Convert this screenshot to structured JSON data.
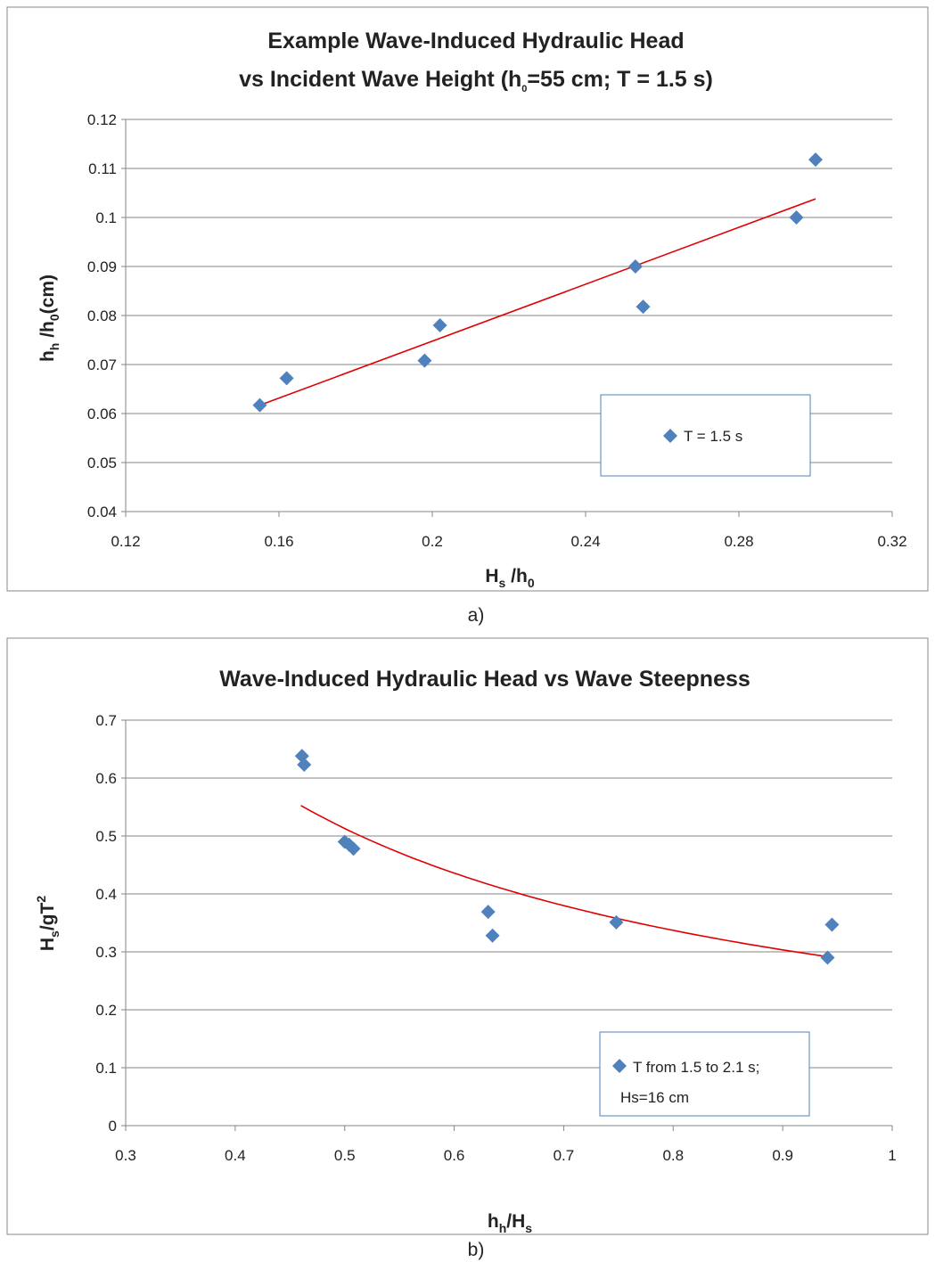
{
  "chart_data": [
    {
      "type": "scatter",
      "panel_label": "a)",
      "title": {
        "line1": "Example Wave-Induced Hydraulic Head",
        "line2_pre": "vs Incident Wave Height (h",
        "line2_sub": "0",
        "line2_post": "=55 cm; T = 1.5 s)"
      },
      "xlabel": {
        "main": "H",
        "sub1": "s",
        "mid": " /h",
        "sub2": "0"
      },
      "ylabel": {
        "main": "h",
        "sub1": "h",
        "mid": " /h",
        "sub2": "0",
        "post": "(cm)"
      },
      "xlim": [
        0.12,
        0.32
      ],
      "ylim": [
        0.04,
        0.12
      ],
      "x_ticks": [
        "0.12",
        "0.16",
        "0.2",
        "0.24",
        "0.28",
        "0.32"
      ],
      "y_ticks": [
        "0.04",
        "0.05",
        "0.06",
        "0.07",
        "0.08",
        "0.09",
        "0.1",
        "0.11",
        "0.12"
      ],
      "grid": "horizontal",
      "legend_position": "bottom-right",
      "series": [
        {
          "name": "T = 1.5 s",
          "color": "#4F81BD",
          "marker": "diamond",
          "x": [
            0.155,
            0.162,
            0.198,
            0.202,
            0.253,
            0.255,
            0.295,
            0.3
          ],
          "y": [
            0.0617,
            0.0672,
            0.0708,
            0.078,
            0.09,
            0.0818,
            0.1,
            0.1118
          ]
        }
      ],
      "trendline": {
        "type": "linear",
        "color": "#E00000",
        "x": [
          0.155,
          0.3
        ],
        "y": [
          0.0617,
          0.1038
        ]
      }
    },
    {
      "type": "scatter",
      "panel_label": "b)",
      "title": {
        "line1": "Wave-Induced Hydraulic Head vs Wave Steepness"
      },
      "xlabel": {
        "main": "h",
        "sub1": "h",
        "mid": "/H",
        "sub2": "s"
      },
      "ylabel": {
        "main": "H",
        "sub1": "s",
        "mid": "/gT",
        "sup": "2"
      },
      "xlim": [
        0.3,
        1
      ],
      "ylim": [
        0,
        0.7
      ],
      "x_ticks": [
        "0.3",
        "0.4",
        "0.5",
        "0.6",
        "0.7",
        "0.8",
        "0.9",
        "1"
      ],
      "y_ticks": [
        "0",
        "0.1",
        "0.2",
        "0.3",
        "0.4",
        "0.5",
        "0.6",
        "0.7"
      ],
      "grid": "horizontal",
      "legend_position": "bottom-right",
      "series": [
        {
          "name": "T from 1.5 to 2.1  s; Hs=16 cm",
          "legend_line1": "T from 1.5 to 2.1  s;",
          "legend_line2": "Hs=16 cm",
          "color": "#4F81BD",
          "marker": "diamond",
          "x": [
            0.461,
            0.463,
            0.5,
            0.504,
            0.508,
            0.631,
            0.635,
            0.748,
            0.941,
            0.945
          ],
          "y": [
            0.638,
            0.623,
            0.49,
            0.485,
            0.478,
            0.369,
            0.328,
            0.351,
            0.29,
            0.347
          ]
        }
      ],
      "trendline": {
        "type": "power",
        "color": "#E00000",
        "x_range": [
          0.46,
          0.94
        ],
        "a": 0.2762,
        "b": -0.8932
      }
    }
  ]
}
